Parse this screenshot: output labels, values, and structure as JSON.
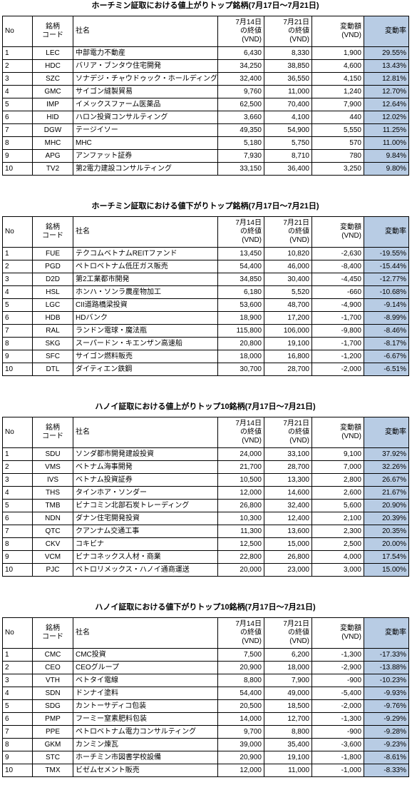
{
  "tables": [
    {
      "title": "ホーチミン証取における値上がりトップ銘柄(7月17日～7月21日)",
      "headers": [
        "No",
        "銘柄\nコード",
        "社名",
        "7月14日\nの終値\n(VND)",
        "7月21日\nの終値\n(VND)",
        "変動額\n(VND)",
        "変動率"
      ],
      "rows": [
        [
          "1",
          "LEC",
          "中部電力不動産",
          "6,430",
          "8,330",
          "1,900",
          "29.55%"
        ],
        [
          "2",
          "HDC",
          "バリア・ブンタウ住宅開発",
          "34,250",
          "38,850",
          "4,600",
          "13.43%"
        ],
        [
          "3",
          "SZC",
          "ソナデジ・チャウドゥック・ホールディングス",
          "32,400",
          "36,550",
          "4,150",
          "12.81%"
        ],
        [
          "4",
          "GMC",
          "サイゴン縫製貿易",
          "9,760",
          "11,000",
          "1,240",
          "12.70%"
        ],
        [
          "5",
          "IMP",
          "イメックスファーム医薬品",
          "62,500",
          "70,400",
          "7,900",
          "12.64%"
        ],
        [
          "6",
          "HID",
          "ハロン投資コンサルティング",
          "3,660",
          "4,100",
          "440",
          "12.02%"
        ],
        [
          "7",
          "DGW",
          "テージイソー",
          "49,350",
          "54,900",
          "5,550",
          "11.25%"
        ],
        [
          "8",
          "MHC",
          "MHC",
          "5,180",
          "5,750",
          "570",
          "11.00%"
        ],
        [
          "9",
          "APG",
          "アンファット証券",
          "7,930",
          "8,710",
          "780",
          "9.84%"
        ],
        [
          "10",
          "TV2",
          "第2電力建設コンサルティング",
          "33,150",
          "36,400",
          "3,250",
          "9.80%"
        ]
      ]
    },
    {
      "title": "ホーチミン証取における値下がりトップ銘柄(7月17日～7月21日)",
      "headers": [
        "No",
        "銘柄\nコード",
        "社名",
        "7月14日\nの終値\n(VND)",
        "7月21日\nの終値\n(VND)",
        "変動額\n(VND)",
        "変動率"
      ],
      "rows": [
        [
          "1",
          "FUE",
          "テクコムベトナムREITファンド",
          "13,450",
          "10,820",
          "-2,630",
          "-19.55%"
        ],
        [
          "2",
          "PGD",
          "ペトロベトナム低圧ガス販売",
          "54,400",
          "46,000",
          "-8,400",
          "-15.44%"
        ],
        [
          "3",
          "D2D",
          "第2工業都市開発",
          "34,850",
          "30,400",
          "-4,450",
          "-12.77%"
        ],
        [
          "4",
          "HSL",
          "ホンハ・ソンラ農産物加工",
          "6,180",
          "5,520",
          "-660",
          "-10.68%"
        ],
        [
          "5",
          "LGC",
          "CII道路橋梁投資",
          "53,600",
          "48,700",
          "-4,900",
          "-9.14%"
        ],
        [
          "6",
          "HDB",
          "HDバンク",
          "18,900",
          "17,200",
          "-1,700",
          "-8.99%"
        ],
        [
          "7",
          "RAL",
          "ランドン電球・魔法瓶",
          "115,800",
          "106,000",
          "-9,800",
          "-8.46%"
        ],
        [
          "8",
          "SKG",
          "スーパードン・キエンザン高速船",
          "20,800",
          "19,100",
          "-1,700",
          "-8.17%"
        ],
        [
          "9",
          "SFC",
          "サイゴン燃料販売",
          "18,000",
          "16,800",
          "-1,200",
          "-6.67%"
        ],
        [
          "10",
          "DTL",
          "ダイティエン鉄鋼",
          "30,700",
          "28,700",
          "-2,000",
          "-6.51%"
        ]
      ]
    },
    {
      "title": "ハノイ証取における値上がりトップ10銘柄(7月17日～7月21日)",
      "headers": [
        "No",
        "銘柄\nコード",
        "社名",
        "7月14日\nの終値\n(VND)",
        "7月21日\nの終値\n(VND)",
        "変動額\n(VND)",
        "変動率"
      ],
      "rows": [
        [
          "1",
          "SDU",
          "ソンダ都市開発建設投資",
          "24,000",
          "33,100",
          "9,100",
          "37.92%"
        ],
        [
          "2",
          "VMS",
          "ベトナム海事開発",
          "21,700",
          "28,700",
          "7,000",
          "32.26%"
        ],
        [
          "3",
          "IVS",
          "ベトナム投資証券",
          "10,500",
          "13,300",
          "2,800",
          "26.67%"
        ],
        [
          "4",
          "THS",
          "タインホア・ソンダー",
          "12,000",
          "14,600",
          "2,600",
          "21.67%"
        ],
        [
          "5",
          "TMB",
          "ビナコミン北部石炭トレーディング",
          "26,800",
          "32,400",
          "5,600",
          "20.90%"
        ],
        [
          "6",
          "NDN",
          "ダナン住宅開発投資",
          "10,300",
          "12,400",
          "2,100",
          "20.39%"
        ],
        [
          "7",
          "QTC",
          "クアンナム交通工事",
          "11,300",
          "13,600",
          "2,300",
          "20.35%"
        ],
        [
          "8",
          "CKV",
          "コキビナ",
          "12,500",
          "15,000",
          "2,500",
          "20.00%"
        ],
        [
          "9",
          "VCM",
          "ビナコネックス人材・商業",
          "22,800",
          "26,800",
          "4,000",
          "17.54%"
        ],
        [
          "10",
          "PJC",
          "ペトロリメックス・ハノイ通商運送",
          "20,000",
          "23,000",
          "3,000",
          "15.00%"
        ]
      ]
    },
    {
      "title": "ハノイ証取における値下がりトップ10銘柄(7月17日～7月21日)",
      "headers": [
        "No",
        "銘柄\nコード",
        "社名",
        "7月14日\nの終値\n(VND)",
        "7月21日\nの終値\n(VND)",
        "変動額\n(VND)",
        "変動率"
      ],
      "rows": [
        [
          "1",
          "CMC",
          "CMC投資",
          "7,500",
          "6,200",
          "-1,300",
          "-17.33%"
        ],
        [
          "2",
          "CEO",
          "CEOグループ",
          "20,900",
          "18,000",
          "-2,900",
          "-13.88%"
        ],
        [
          "3",
          "VTH",
          "ベトタイ電線",
          "8,800",
          "7,900",
          "-900",
          "-10.23%"
        ],
        [
          "4",
          "SDN",
          "ドンナイ塗料",
          "54,400",
          "49,000",
          "-5,400",
          "-9.93%"
        ],
        [
          "5",
          "SDG",
          "カントーサディコ包装",
          "20,500",
          "18,500",
          "-2,000",
          "-9.76%"
        ],
        [
          "6",
          "PMP",
          "フーミー窒素肥料包装",
          "14,000",
          "12,700",
          "-1,300",
          "-9.29%"
        ],
        [
          "7",
          "PPE",
          "ペトロベトナム電力コンサルティング",
          "9,700",
          "8,800",
          "-900",
          "-9.28%"
        ],
        [
          "8",
          "GKM",
          "カンミン煉瓦",
          "39,000",
          "35,400",
          "-3,600",
          "-9.23%"
        ],
        [
          "9",
          "STC",
          "ホーチミン市図書学校設備",
          "20,900",
          "19,100",
          "-1,800",
          "-8.61%"
        ],
        [
          "10",
          "TMX",
          "ビゼムセメント販売",
          "12,000",
          "11,000",
          "-1,000",
          "-8.33%"
        ]
      ]
    }
  ]
}
